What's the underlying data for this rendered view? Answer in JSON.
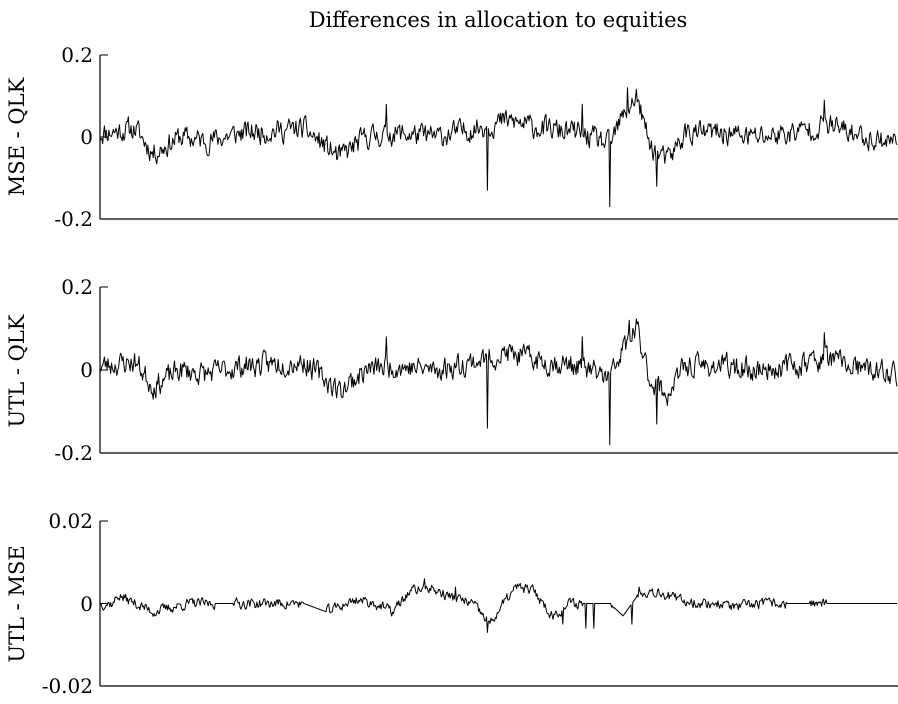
{
  "chart_data": [
    {
      "type": "line",
      "title": "Differences in allocation to equities",
      "ylabel": "MSE - QLK",
      "ylim": [
        -0.2,
        0.2
      ],
      "yticks": [
        0.2,
        0,
        -0.2
      ],
      "ytick_labels": [
        "0.2",
        "0",
        "-0.2"
      ],
      "x_count": 900,
      "line_color": "#000000",
      "noise_scale": 0.024,
      "seed": 11,
      "anchors": [
        [
          0,
          0.01
        ],
        [
          40,
          0.02
        ],
        [
          60,
          -0.04
        ],
        [
          90,
          0.0
        ],
        [
          120,
          -0.01
        ],
        [
          160,
          0.01
        ],
        [
          230,
          0.02
        ],
        [
          270,
          -0.05
        ],
        [
          300,
          0.0
        ],
        [
          330,
          0.01
        ],
        [
          380,
          0.0
        ],
        [
          420,
          0.02
        ],
        [
          460,
          0.04
        ],
        [
          500,
          0.02
        ],
        [
          540,
          0.01
        ],
        [
          575,
          -0.02
        ],
        [
          590,
          0.05
        ],
        [
          605,
          0.1
        ],
        [
          620,
          -0.02
        ],
        [
          640,
          -0.06
        ],
        [
          660,
          0.01
        ],
        [
          700,
          0.01
        ],
        [
          740,
          0.0
        ],
        [
          780,
          0.01
        ],
        [
          820,
          0.03
        ],
        [
          860,
          0.0
        ],
        [
          899,
          -0.01
        ]
      ],
      "spikes": [
        [
          575,
          -0.17
        ],
        [
          595,
          0.12
        ],
        [
          437,
          -0.13
        ],
        [
          628,
          -0.12
        ],
        [
          817,
          0.09
        ],
        [
          323,
          0.08
        ],
        [
          544,
          0.08
        ]
      ]
    },
    {
      "type": "line",
      "ylabel": "UTL - QLK",
      "ylim": [
        -0.2,
        0.2
      ],
      "yticks": [
        0.2,
        0,
        -0.2
      ],
      "ytick_labels": [
        "0.2",
        "0",
        "-0.2"
      ],
      "x_count": 900,
      "line_color": "#000000",
      "noise_scale": 0.024,
      "seed": 23,
      "anchors": [
        [
          0,
          0.01
        ],
        [
          40,
          0.02
        ],
        [
          60,
          -0.04
        ],
        [
          90,
          0.0
        ],
        [
          120,
          -0.01
        ],
        [
          160,
          0.01
        ],
        [
          230,
          0.02
        ],
        [
          270,
          -0.05
        ],
        [
          300,
          0.0
        ],
        [
          330,
          0.01
        ],
        [
          380,
          0.0
        ],
        [
          420,
          0.02
        ],
        [
          460,
          0.04
        ],
        [
          500,
          0.02
        ],
        [
          540,
          0.01
        ],
        [
          575,
          -0.02
        ],
        [
          590,
          0.05
        ],
        [
          605,
          0.1
        ],
        [
          620,
          -0.02
        ],
        [
          640,
          -0.06
        ],
        [
          660,
          0.01
        ],
        [
          700,
          0.01
        ],
        [
          740,
          0.0
        ],
        [
          780,
          0.01
        ],
        [
          820,
          0.03
        ],
        [
          860,
          0.0
        ],
        [
          899,
          -0.01
        ]
      ],
      "spikes": [
        [
          575,
          -0.18
        ],
        [
          597,
          0.12
        ],
        [
          437,
          -0.14
        ],
        [
          628,
          -0.13
        ],
        [
          817,
          0.09
        ],
        [
          323,
          0.08
        ],
        [
          544,
          0.08
        ]
      ]
    },
    {
      "type": "line",
      "ylabel": "UTL - MSE",
      "ylim": [
        -0.02,
        0.02
      ],
      "yticks": [
        0.02,
        0,
        -0.02
      ],
      "ytick_labels": [
        "0.02",
        "0",
        "-0.02"
      ],
      "x_count": 900,
      "line_color": "#000000",
      "noise_scale": 0.0011,
      "seed": 37,
      "flat_ranges": [
        [
          130,
          150
        ],
        [
          230,
          255
        ],
        [
          545,
          575
        ],
        [
          580,
          605
        ],
        [
          775,
          800
        ],
        [
          820,
          899
        ]
      ],
      "anchors": [
        [
          0,
          0.0
        ],
        [
          15,
          0.0
        ],
        [
          20,
          0.002
        ],
        [
          40,
          0.0
        ],
        [
          60,
          -0.002
        ],
        [
          80,
          -0.001
        ],
        [
          100,
          0.0
        ],
        [
          130,
          0.0
        ],
        [
          150,
          0.0
        ],
        [
          230,
          0.0
        ],
        [
          255,
          -0.002
        ],
        [
          290,
          0.001
        ],
        [
          310,
          0.0
        ],
        [
          330,
          -0.002
        ],
        [
          350,
          0.003
        ],
        [
          370,
          0.004
        ],
        [
          390,
          0.002
        ],
        [
          420,
          0.0
        ],
        [
          440,
          -0.005
        ],
        [
          455,
          0.0
        ],
        [
          470,
          0.004
        ],
        [
          490,
          0.003
        ],
        [
          510,
          -0.003
        ],
        [
          530,
          0.0
        ],
        [
          545,
          0.0
        ],
        [
          575,
          0.0
        ],
        [
          590,
          -0.003
        ],
        [
          610,
          0.003
        ],
        [
          630,
          0.003
        ],
        [
          650,
          0.001
        ],
        [
          680,
          0.0
        ],
        [
          700,
          0.0
        ],
        [
          720,
          -0.001
        ],
        [
          740,
          0.0
        ],
        [
          760,
          0.0
        ],
        [
          775,
          0.0
        ],
        [
          800,
          0.0
        ],
        [
          820,
          0.0
        ],
        [
          899,
          0.0
        ]
      ],
      "spikes": [
        [
          437,
          -0.007
        ],
        [
          548,
          -0.006
        ],
        [
          522,
          -0.005
        ],
        [
          557,
          -0.006
        ],
        [
          600,
          -0.005
        ],
        [
          608,
          0.004
        ],
        [
          366,
          0.006
        ],
        [
          401,
          0.004
        ]
      ]
    }
  ]
}
